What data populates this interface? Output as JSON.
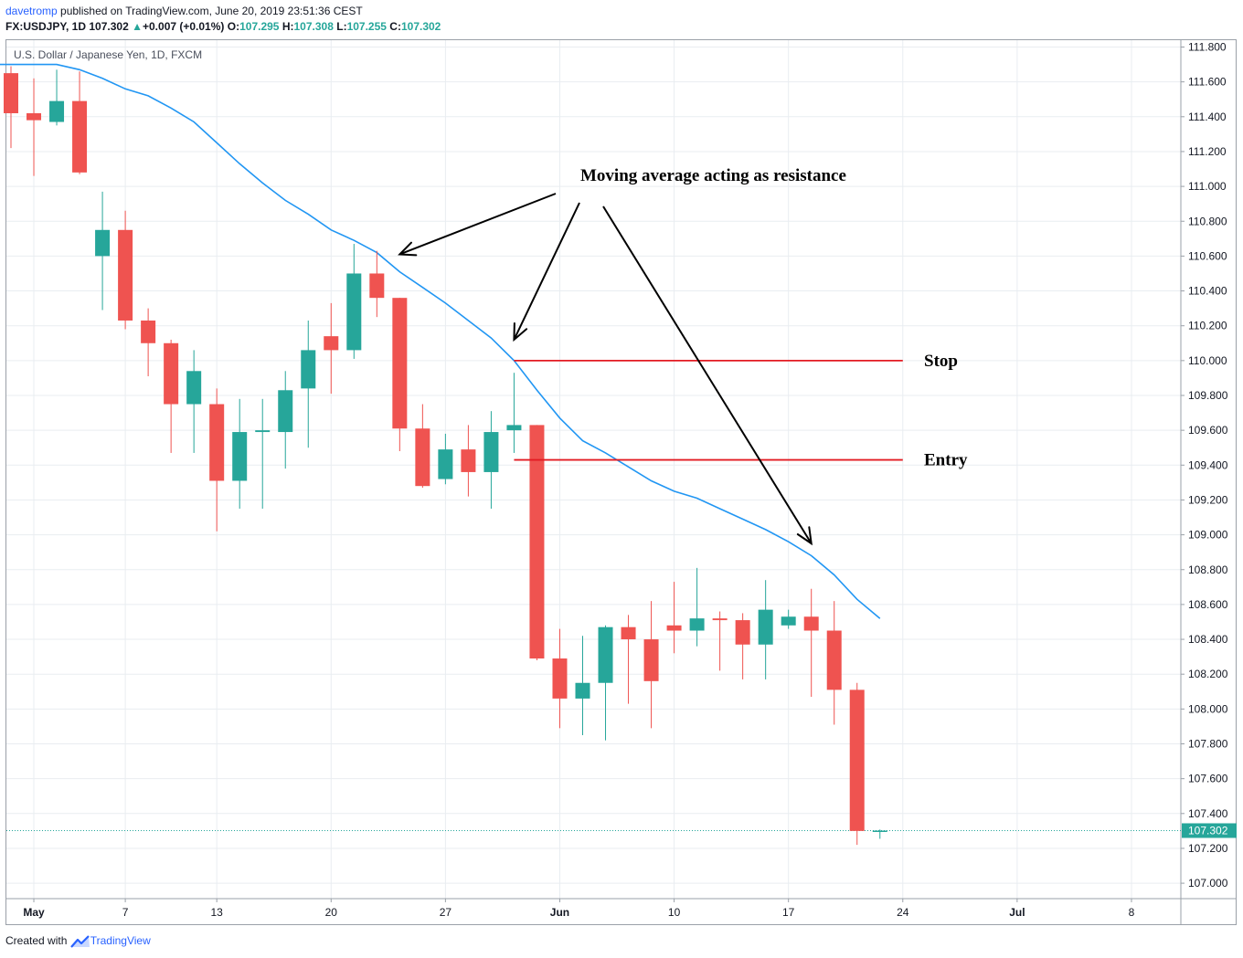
{
  "header": {
    "user": "davetromp",
    "published": " published on TradingView.com, June 20, 2019 23:51:36 CEST",
    "symbol_line": "FX:USDJPY, 1D",
    "last": "107.302",
    "change": "+0.007 (+0.01%)",
    "o_label": "O:",
    "o": "107.295",
    "h_label": "H:",
    "h": "107.308",
    "l_label": "L:",
    "l": "107.255",
    "c_label": "C:",
    "c": "107.302"
  },
  "symbol_title": "U.S. Dollar / Japanese Yen, 1D, FXCM",
  "footer": {
    "created": "Created with",
    "brand": "TradingView"
  },
  "colors": {
    "up": "#26a69a",
    "down": "#ef5350",
    "ma": "#2196f3",
    "level": "#e31b23",
    "grid": "#e9edf1"
  },
  "chart_data": {
    "type": "candlestick",
    "ylim": [
      106.96,
      111.86
    ],
    "yticks": [
      "111.800",
      "111.600",
      "111.400",
      "111.200",
      "111.000",
      "110.800",
      "110.600",
      "110.400",
      "110.200",
      "110.000",
      "109.800",
      "109.600",
      "109.400",
      "109.200",
      "109.000",
      "108.800",
      "108.600",
      "108.400",
      "108.200",
      "108.000",
      "107.800",
      "107.600",
      "107.400",
      "107.200",
      "107.000"
    ],
    "xticks": [
      {
        "label": "May",
        "idx": 1,
        "bold": true
      },
      {
        "label": "7",
        "idx": 5
      },
      {
        "label": "13",
        "idx": 9
      },
      {
        "label": "20",
        "idx": 14
      },
      {
        "label": "27",
        "idx": 19
      },
      {
        "label": "Jun",
        "idx": 24,
        "bold": true
      },
      {
        "label": "10",
        "idx": 29
      },
      {
        "label": "17",
        "idx": 34
      },
      {
        "label": "24",
        "idx": 39
      },
      {
        "label": "Jul",
        "idx": 44,
        "bold": true
      },
      {
        "label": "8",
        "idx": 49
      }
    ],
    "candles": [
      {
        "idx": 0,
        "o": 111.65,
        "h": 111.69,
        "l": 111.22,
        "c": 111.42
      },
      {
        "idx": 1,
        "o": 111.42,
        "h": 111.62,
        "l": 111.06,
        "c": 111.38
      },
      {
        "idx": 2,
        "o": 111.37,
        "h": 111.67,
        "l": 111.35,
        "c": 111.49
      },
      {
        "idx": 3,
        "o": 111.49,
        "h": 111.66,
        "l": 111.07,
        "c": 111.08
      },
      {
        "idx": 4,
        "o": 110.6,
        "h": 110.97,
        "l": 110.29,
        "c": 110.75
      },
      {
        "idx": 5,
        "o": 110.75,
        "h": 110.86,
        "l": 110.18,
        "c": 110.23
      },
      {
        "idx": 6,
        "o": 110.23,
        "h": 110.3,
        "l": 109.91,
        "c": 110.1
      },
      {
        "idx": 7,
        "o": 110.1,
        "h": 110.12,
        "l": 109.47,
        "c": 109.75
      },
      {
        "idx": 8,
        "o": 109.75,
        "h": 110.06,
        "l": 109.47,
        "c": 109.94
      },
      {
        "idx": 9,
        "o": 109.75,
        "h": 109.84,
        "l": 109.02,
        "c": 109.31
      },
      {
        "idx": 10,
        "o": 109.31,
        "h": 109.78,
        "l": 109.15,
        "c": 109.59
      },
      {
        "idx": 11,
        "o": 109.59,
        "h": 109.78,
        "l": 109.15,
        "c": 109.6
      },
      {
        "idx": 12,
        "o": 109.59,
        "h": 109.94,
        "l": 109.38,
        "c": 109.83
      },
      {
        "idx": 13,
        "o": 109.84,
        "h": 110.23,
        "l": 109.5,
        "c": 110.06
      },
      {
        "idx": 14,
        "o": 110.14,
        "h": 110.33,
        "l": 109.81,
        "c": 110.06
      },
      {
        "idx": 15,
        "o": 110.06,
        "h": 110.67,
        "l": 110.01,
        "c": 110.5
      },
      {
        "idx": 16,
        "o": 110.5,
        "h": 110.63,
        "l": 110.25,
        "c": 110.36
      },
      {
        "idx": 17,
        "o": 110.36,
        "h": 110.36,
        "l": 109.48,
        "c": 109.61
      },
      {
        "idx": 18,
        "o": 109.61,
        "h": 109.75,
        "l": 109.27,
        "c": 109.28
      },
      {
        "idx": 19,
        "o": 109.32,
        "h": 109.58,
        "l": 109.29,
        "c": 109.49
      },
      {
        "idx": 20,
        "o": 109.49,
        "h": 109.63,
        "l": 109.22,
        "c": 109.36
      },
      {
        "idx": 21,
        "o": 109.36,
        "h": 109.71,
        "l": 109.15,
        "c": 109.59
      },
      {
        "idx": 22,
        "o": 109.6,
        "h": 109.93,
        "l": 109.47,
        "c": 109.63
      },
      {
        "idx": 23,
        "o": 109.63,
        "h": 109.63,
        "l": 108.28,
        "c": 108.29
      },
      {
        "idx": 24,
        "o": 108.29,
        "h": 108.46,
        "l": 107.89,
        "c": 108.06
      },
      {
        "idx": 25,
        "o": 108.06,
        "h": 108.42,
        "l": 107.85,
        "c": 108.15
      },
      {
        "idx": 26,
        "o": 108.15,
        "h": 108.48,
        "l": 107.82,
        "c": 108.47
      },
      {
        "idx": 27,
        "o": 108.47,
        "h": 108.54,
        "l": 108.03,
        "c": 108.4
      },
      {
        "idx": 28,
        "o": 108.4,
        "h": 108.62,
        "l": 107.89,
        "c": 108.16
      },
      {
        "idx": 29,
        "o": 108.48,
        "h": 108.73,
        "l": 108.32,
        "c": 108.45
      },
      {
        "idx": 30,
        "o": 108.45,
        "h": 108.81,
        "l": 108.36,
        "c": 108.52
      },
      {
        "idx": 31,
        "o": 108.52,
        "h": 108.56,
        "l": 108.22,
        "c": 108.51
      },
      {
        "idx": 32,
        "o": 108.51,
        "h": 108.55,
        "l": 108.17,
        "c": 108.37
      },
      {
        "idx": 33,
        "o": 108.37,
        "h": 108.74,
        "l": 108.17,
        "c": 108.57
      },
      {
        "idx": 34,
        "o": 108.48,
        "h": 108.57,
        "l": 108.46,
        "c": 108.53
      },
      {
        "idx": 35,
        "o": 108.53,
        "h": 108.69,
        "l": 108.07,
        "c": 108.45
      },
      {
        "idx": 36,
        "o": 108.45,
        "h": 108.62,
        "l": 107.91,
        "c": 108.11
      },
      {
        "idx": 37,
        "o": 108.11,
        "h": 108.15,
        "l": 107.22,
        "c": 107.3
      },
      {
        "idx": 38,
        "o": 107.295,
        "h": 107.308,
        "l": 107.255,
        "c": 107.302
      }
    ],
    "moving_average": [
      {
        "idx": -1,
        "v": 111.7
      },
      {
        "idx": 0,
        "v": 111.7
      },
      {
        "idx": 1,
        "v": 111.7
      },
      {
        "idx": 2,
        "v": 111.7
      },
      {
        "idx": 3,
        "v": 111.67
      },
      {
        "idx": 4,
        "v": 111.62
      },
      {
        "idx": 5,
        "v": 111.56
      },
      {
        "idx": 6,
        "v": 111.52
      },
      {
        "idx": 7,
        "v": 111.45
      },
      {
        "idx": 8,
        "v": 111.37
      },
      {
        "idx": 9,
        "v": 111.25
      },
      {
        "idx": 10,
        "v": 111.13
      },
      {
        "idx": 11,
        "v": 111.02
      },
      {
        "idx": 12,
        "v": 110.92
      },
      {
        "idx": 13,
        "v": 110.84
      },
      {
        "idx": 14,
        "v": 110.75
      },
      {
        "idx": 15,
        "v": 110.69
      },
      {
        "idx": 16,
        "v": 110.62
      },
      {
        "idx": 17,
        "v": 110.51
      },
      {
        "idx": 18,
        "v": 110.42
      },
      {
        "idx": 19,
        "v": 110.33
      },
      {
        "idx": 20,
        "v": 110.23
      },
      {
        "idx": 21,
        "v": 110.13
      },
      {
        "idx": 22,
        "v": 110.0
      },
      {
        "idx": 23,
        "v": 109.83
      },
      {
        "idx": 24,
        "v": 109.67
      },
      {
        "idx": 25,
        "v": 109.54
      },
      {
        "idx": 26,
        "v": 109.47
      },
      {
        "idx": 27,
        "v": 109.39
      },
      {
        "idx": 28,
        "v": 109.31
      },
      {
        "idx": 29,
        "v": 109.25
      },
      {
        "idx": 30,
        "v": 109.21
      },
      {
        "idx": 31,
        "v": 109.15
      },
      {
        "idx": 32,
        "v": 109.09
      },
      {
        "idx": 33,
        "v": 109.03
      },
      {
        "idx": 34,
        "v": 108.96
      },
      {
        "idx": 35,
        "v": 108.88
      },
      {
        "idx": 36,
        "v": 108.77
      },
      {
        "idx": 37,
        "v": 108.63
      },
      {
        "idx": 38,
        "v": 108.52
      }
    ],
    "last_price": {
      "label": "107.302",
      "v": 107.302
    },
    "levels": [
      {
        "label": "Stop",
        "v": 110.0,
        "from_idx": 22,
        "to_idx": 39
      },
      {
        "label": "Entry",
        "v": 109.43,
        "from_idx": 22,
        "to_idx": 39
      }
    ],
    "annotation": {
      "text": "Moving average acting as resistance",
      "arrows": [
        {
          "to_idx": 17,
          "to_v": 110.61
        },
        {
          "to_idx": 22,
          "to_v": 110.12
        },
        {
          "to_idx": 35,
          "to_v": 108.95
        }
      ]
    }
  }
}
